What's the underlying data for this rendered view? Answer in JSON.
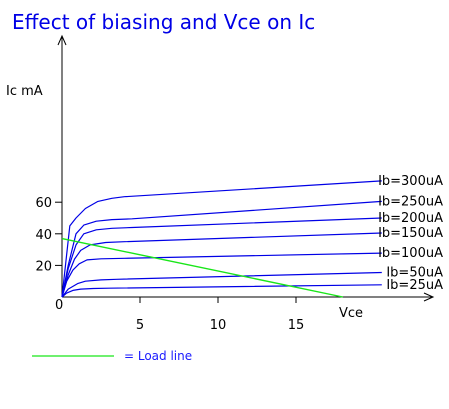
{
  "chart_data": {
    "type": "line",
    "title": "Effect of biasing and Vce on Ic",
    "xlabel": "Vce",
    "ylabel": "Ic mA",
    "origin_label": "0",
    "xlim": [
      0,
      21
    ],
    "ylim": [
      0,
      80
    ],
    "xticks": [
      5,
      10,
      15
    ],
    "yticks": [
      20,
      40,
      60
    ],
    "grid": false,
    "colors": {
      "curves": "#0000e6",
      "load_line": "#19e619",
      "axes": "#000000",
      "title": "#0000e6"
    },
    "series": [
      {
        "name": "Ib=25uA",
        "x": [
          0,
          0.3,
          0.7,
          1.2,
          2,
          3,
          20.5
        ],
        "y": [
          0,
          2.5,
          4.2,
          5,
          5.4,
          5.6,
          7.7
        ]
      },
      {
        "name": "Ib=50uA",
        "x": [
          0,
          0.4,
          1,
          1.5,
          2.5,
          3.5,
          20.5
        ],
        "y": [
          0,
          5,
          8.5,
          10,
          10.8,
          11.2,
          15.5
        ]
      },
      {
        "name": "Ib=100uA",
        "x": [
          0,
          0.3,
          0.7,
          1.1,
          1.6,
          2.5,
          4,
          20.5
        ],
        "y": [
          0,
          10,
          17,
          21,
          23.5,
          24.2,
          24.5,
          27.8
        ]
      },
      {
        "name": "Ib=150uA",
        "x": [
          0,
          0.4,
          0.8,
          1.2,
          1.8,
          2.8,
          4,
          20.5
        ],
        "y": [
          0,
          14,
          24,
          29.5,
          33,
          34.5,
          35,
          40.5
        ]
      },
      {
        "name": "Ib=200uA",
        "x": [
          0,
          0.4,
          0.9,
          1.4,
          2.2,
          3.2,
          4.5,
          20.5
        ],
        "y": [
          0,
          18,
          33,
          40,
          42.5,
          43.5,
          44,
          50
        ]
      },
      {
        "name": "Ib=250uA",
        "x": [
          0,
          0.4,
          0.9,
          1.4,
          2.2,
          3.2,
          4.5,
          20.5
        ],
        "y": [
          0,
          20,
          40,
          45.5,
          48,
          49,
          49.5,
          60.5
        ]
      },
      {
        "name": "Ib=300uA",
        "x": [
          0,
          0.5,
          0.9,
          1.5,
          2.3,
          3.2,
          4,
          20.5
        ],
        "y": [
          0,
          45,
          50,
          56,
          60.5,
          62.5,
          63.5,
          73.5
        ]
      }
    ],
    "load_line": {
      "name": "Load line",
      "x": [
        0,
        18
      ],
      "y": [
        37,
        0
      ]
    },
    "legend": [
      {
        "label": "= Load line"
      }
    ]
  }
}
